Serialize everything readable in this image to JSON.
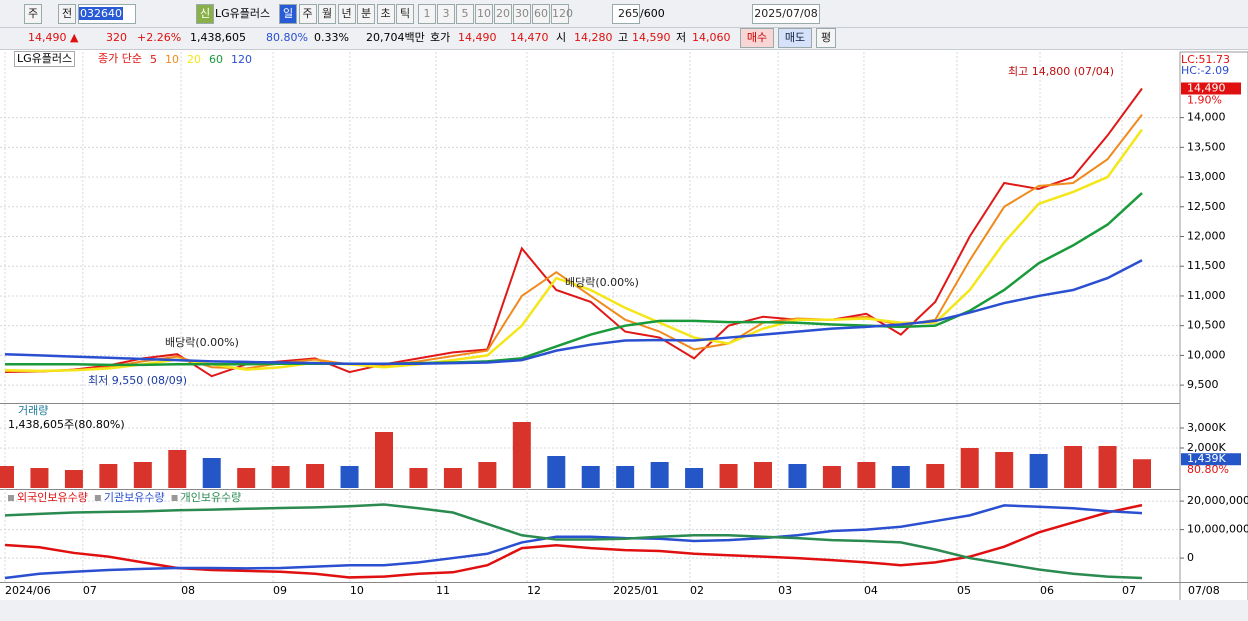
{
  "toolbar": {
    "items": [
      "주",
      "전"
    ],
    "code": "032640",
    "new": "신",
    "name": "LG유플러스",
    "periods": [
      "일",
      "주",
      "월",
      "년",
      "분",
      "초",
      "틱"
    ],
    "intervals": [
      "1",
      "3",
      "5",
      "10",
      "20",
      "30",
      "60",
      "120"
    ],
    "count": "265",
    "max": "/600",
    "date": "2025/07/08"
  },
  "quote": {
    "price": "14,490 ▲",
    "change": "320",
    "rate": "+2.26%",
    "volume": "1,438,605",
    "vol_ratio": "80.80%",
    "turnover": "0.33%",
    "amount": "20,704백만",
    "bid_label": "호가",
    "ask": "14,490",
    "bid": "14,470",
    "open_label": "시",
    "open": "14,280",
    "high_label": "고",
    "high": "14,590",
    "low_label": "저",
    "low": "14,060",
    "buy": "매수",
    "sell": "매도",
    "avg": "평"
  },
  "chart_data": [
    {
      "type": "line",
      "title": "LG유플러스",
      "legend_prefix": "종가 단순",
      "xlim": [
        0,
        33
      ],
      "ylim": [
        9216,
        15070
      ],
      "yticks": [
        {
          "value": 9500,
          "label": "9,500"
        },
        {
          "value": 10000,
          "label": "10,000"
        },
        {
          "value": 10500,
          "label": "10,500"
        },
        {
          "value": 11000,
          "label": "11,000"
        },
        {
          "value": 11500,
          "label": "11,500"
        },
        {
          "value": 12000,
          "label": "12,000"
        },
        {
          "value": 12500,
          "label": "12,500"
        },
        {
          "value": 13000,
          "label": "13,000"
        },
        {
          "value": 13500,
          "label": "13,500"
        },
        {
          "value": 14000,
          "label": "14,000"
        }
      ],
      "grid": true,
      "indicators": [
        "LC:51.73",
        "HC:-2.09"
      ],
      "current_price": {
        "value": 14490,
        "label": "14,490"
      },
      "change_label": "1.90%",
      "annotations": [
        "최고 14,800 (07/04)",
        "최저 9,550 (08/09)",
        "배당락(0.00%)",
        "배당락(0.00%)"
      ],
      "series": [
        {
          "name": "5",
          "color": "#e01818",
          "values": [
            9720,
            9730,
            9760,
            9830,
            9950,
            10020,
            9650,
            9850,
            9900,
            9950,
            9720,
            9850,
            9950,
            10050,
            10100,
            11800,
            11100,
            10900,
            10400,
            10300,
            9950,
            10500,
            10650,
            10600,
            10600,
            10700,
            10350,
            10900,
            12000,
            12900,
            12800,
            13000,
            13700,
            14490
          ]
        },
        {
          "name": "10",
          "color": "#f08a1c",
          "values": [
            9740,
            9730,
            9750,
            9800,
            9900,
            9980,
            9800,
            9780,
            9870,
            9930,
            9850,
            9830,
            9900,
            9990,
            10080,
            11000,
            11400,
            11000,
            10600,
            10400,
            10100,
            10200,
            10550,
            10620,
            10600,
            10650,
            10500,
            10600,
            11600,
            12500,
            12850,
            12900,
            13300,
            14050
          ]
        },
        {
          "name": "20",
          "color": "#f5e61a",
          "values": [
            9750,
            9740,
            9750,
            9780,
            9850,
            9930,
            9850,
            9760,
            9800,
            9880,
            9850,
            9800,
            9850,
            9920,
            10000,
            10500,
            11300,
            11100,
            10800,
            10550,
            10300,
            10200,
            10450,
            10600,
            10600,
            10620,
            10550,
            10550,
            11100,
            11900,
            12550,
            12750,
            13000,
            13800
          ]
        },
        {
          "name": "60",
          "color": "#1a9a3a",
          "values": [
            9850,
            9850,
            9850,
            9840,
            9840,
            9850,
            9850,
            9850,
            9860,
            9860,
            9860,
            9860,
            9870,
            9880,
            9900,
            9950,
            10150,
            10350,
            10500,
            10580,
            10580,
            10560,
            10560,
            10550,
            10520,
            10500,
            10480,
            10500,
            10750,
            11100,
            11550,
            11850,
            12200,
            12730
          ]
        },
        {
          "name": "120",
          "color": "#2a4fd0",
          "values": [
            10020,
            10000,
            9980,
            9960,
            9940,
            9920,
            9900,
            9890,
            9880,
            9870,
            9860,
            9860,
            9860,
            9870,
            9880,
            9920,
            10080,
            10180,
            10250,
            10260,
            10250,
            10300,
            10350,
            10400,
            10450,
            10480,
            10520,
            10580,
            10720,
            10880,
            11000,
            11100,
            11300,
            11600
          ]
        }
      ]
    },
    {
      "type": "bar",
      "title": "거래량",
      "subtitle": "1,438,605주(80.80%)",
      "xlim": [
        0,
        33
      ],
      "ylim": [
        0,
        4050
      ],
      "yticks": [
        {
          "value": 2000,
          "label": "2,000K"
        },
        {
          "value": 3000,
          "label": "3,000K"
        }
      ],
      "up_color": "#d8342c",
      "down_color": "#2456c8",
      "current": {
        "value": 1438.605,
        "label": "1,439K"
      },
      "ratio": "80.80%",
      "values": [
        1100,
        1000,
        900,
        1200,
        1300,
        1900,
        1500,
        1000,
        1100,
        1200,
        1100,
        2800,
        1000,
        1000,
        1300,
        3300,
        1600,
        1100,
        1100,
        1300,
        1000,
        1200,
        1300,
        1200,
        1100,
        1300,
        1100,
        1200,
        2000,
        1800,
        1700,
        2100,
        2100,
        1438.605
      ]
    },
    {
      "type": "line",
      "xlim": [
        0,
        33
      ],
      "ylim": [
        -7700000,
        23200000
      ],
      "yticks": [
        {
          "value": 20000000,
          "label": "20,000,000"
        },
        {
          "value": 10000000,
          "label": "10,000,000"
        },
        0
      ],
      "xticks": [
        {
          "value": 0,
          "label": "2024/06"
        },
        {
          "value": 2.26,
          "label": "07"
        },
        {
          "value": 5.11,
          "label": "08"
        },
        {
          "value": 7.78,
          "label": "09"
        },
        {
          "value": 10.01,
          "label": "10"
        },
        {
          "value": 12.51,
          "label": "11"
        },
        {
          "value": 15.15,
          "label": "12"
        },
        {
          "value": 17.65,
          "label": "2025/01"
        },
        {
          "value": 19.88,
          "label": "02"
        },
        {
          "value": 22.44,
          "label": "03"
        },
        {
          "value": 24.93,
          "label": "04"
        },
        {
          "value": 27.63,
          "label": "05"
        },
        {
          "value": 30.04,
          "label": "06"
        },
        {
          "value": 32.42,
          "label": "07"
        }
      ],
      "x_end_label": "07/08",
      "series": [
        {
          "name": "외국인보유수량",
          "color": "#e01010",
          "values": [
            4600000,
            3800000,
            1800000,
            500000,
            -1500000,
            -3500000,
            -4200000,
            -4500000,
            -4800000,
            -5500000,
            -6800000,
            -6500000,
            -5500000,
            -5000000,
            -2500000,
            3500000,
            4500000,
            3500000,
            2800000,
            2500000,
            1500000,
            1000000,
            500000,
            0,
            -700000,
            -1500000,
            -2500000,
            -1500000,
            500000,
            4000000,
            9000000,
            12500000,
            16000000,
            18600000
          ]
        },
        {
          "name": "기관보유수량",
          "color": "#2a4fd0",
          "values": [
            -7000000,
            -5500000,
            -4800000,
            -4200000,
            -3800000,
            -3500000,
            -3500000,
            -3600000,
            -3500000,
            -3000000,
            -2500000,
            -2500000,
            -1500000,
            0,
            1500000,
            5500000,
            7500000,
            7500000,
            7000000,
            6800000,
            6000000,
            6300000,
            7000000,
            8000000,
            9500000,
            10000000,
            11000000,
            13000000,
            15000000,
            18500000,
            18000000,
            17500000,
            16500000,
            15800000
          ]
        },
        {
          "name": "개인보유수량",
          "color": "#2a8a50",
          "values": [
            15000000,
            15500000,
            16000000,
            16200000,
            16400000,
            16800000,
            17000000,
            17300000,
            17600000,
            17800000,
            18200000,
            18800000,
            17500000,
            16000000,
            12000000,
            8000000,
            6500000,
            6500000,
            6800000,
            7500000,
            8000000,
            8000000,
            7500000,
            7000000,
            6300000,
            6000000,
            5500000,
            3000000,
            0,
            -2000000,
            -4000000,
            -5500000,
            -6500000,
            -7000000
          ]
        }
      ]
    }
  ]
}
